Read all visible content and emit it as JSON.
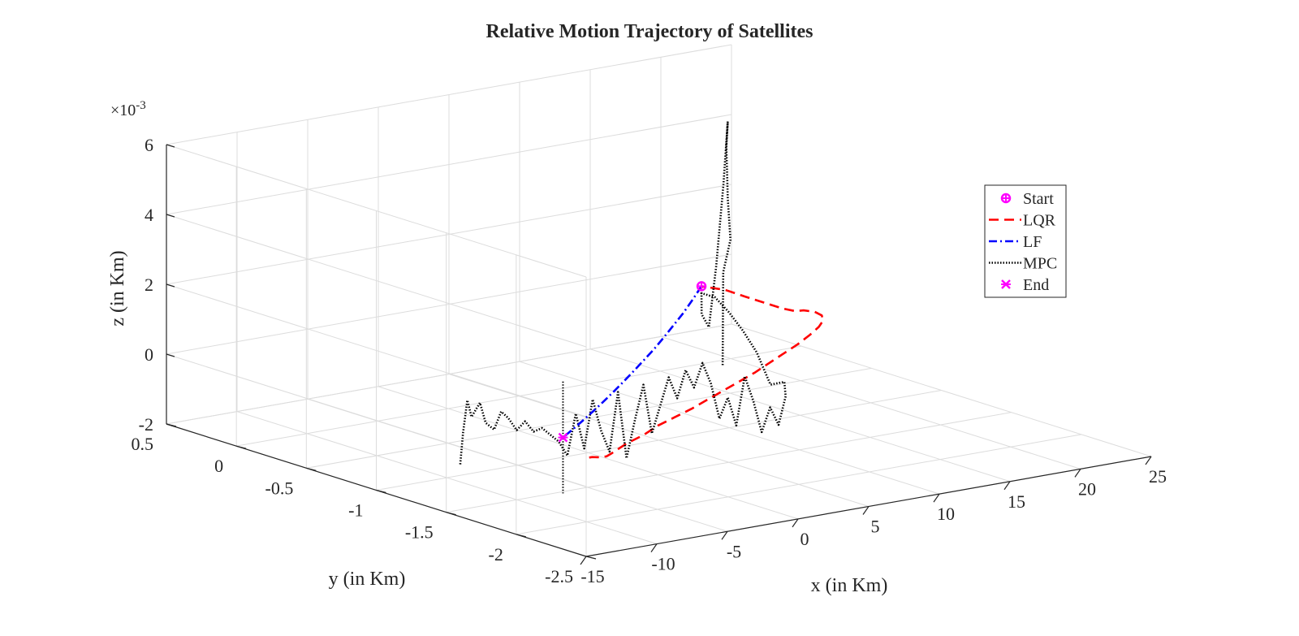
{
  "chart_data": {
    "type": "line",
    "projection": "3d",
    "title": "Relative Motion Trajectory of Satellites",
    "xlabel": "x (in Km)",
    "ylabel": "y (in Km)",
    "zlabel": "z (in Km)",
    "z_multiplier_label": "×10",
    "z_multiplier_exponent": "-3",
    "xlim": [
      -15,
      25
    ],
    "ylim": [
      -2.5,
      0.5
    ],
    "zlim": [
      -2,
      6
    ],
    "xticks": [
      "-15",
      "-10",
      "-5",
      "0",
      "5",
      "10",
      "15",
      "20",
      "25"
    ],
    "yticks": [
      "0.5",
      "0",
      "-0.5",
      "-1",
      "-1.5",
      "-2",
      "-2.5"
    ],
    "zticks": [
      "-2",
      "0",
      "2",
      "4",
      "6"
    ],
    "grid": true,
    "legend_position": "right",
    "series": [
      {
        "name": "Start",
        "marker": "circle-plus",
        "color": "#ff00ff",
        "points": [
          [
            10.0,
            -0.8,
            1.8
          ]
        ]
      },
      {
        "name": "LQR",
        "style": "dashed",
        "color": "#ff0000",
        "points": [
          [
            -13.2,
            -2.34,
            0.5
          ],
          [
            -12.0,
            -2.24,
            0.3
          ],
          [
            -11.0,
            -2.18,
            0.15
          ],
          [
            -10.0,
            -2.14,
            0.05
          ],
          [
            -9.0,
            -2.08,
            0.0
          ],
          [
            -7.0,
            -1.98,
            0.0
          ],
          [
            -5.0,
            -1.9,
            0.0
          ],
          [
            -3.0,
            -1.8,
            0.0
          ],
          [
            -1.0,
            -1.72,
            0.0
          ],
          [
            1.0,
            -1.64,
            0.0
          ],
          [
            3.0,
            -1.55,
            0.0
          ],
          [
            5.0,
            -1.46,
            0.0
          ],
          [
            7.0,
            -1.37,
            0.0
          ],
          [
            9.0,
            -1.28,
            0.0
          ],
          [
            11.0,
            -1.18,
            0.0
          ],
          [
            13.0,
            -1.08,
            0.0
          ],
          [
            15.0,
            -0.98,
            0.0
          ],
          [
            17.0,
            -0.87,
            0.0
          ],
          [
            18.5,
            -0.78,
            0.0
          ],
          [
            19.6,
            -0.7,
            0.0
          ],
          [
            20.3,
            -0.62,
            0.0
          ],
          [
            20.5,
            -0.55,
            0.0
          ],
          [
            20.2,
            -0.5,
            0.0
          ],
          [
            19.2,
            -0.54,
            0.1
          ],
          [
            17.5,
            -0.62,
            0.4
          ],
          [
            15.5,
            -0.7,
            0.8
          ],
          [
            13.5,
            -0.76,
            1.2
          ],
          [
            11.8,
            -0.79,
            1.55
          ],
          [
            10.0,
            -0.8,
            1.8
          ]
        ]
      },
      {
        "name": "LF",
        "style": "dash-dot",
        "color": "#0000ff",
        "points": [
          [
            10.0,
            -0.8,
            1.8
          ],
          [
            9.0,
            -0.84,
            1.55
          ],
          [
            7.5,
            -0.92,
            1.35
          ],
          [
            6.0,
            -1.0,
            1.2
          ],
          [
            4.5,
            -1.08,
            1.05
          ],
          [
            3.0,
            -1.16,
            0.92
          ],
          [
            1.5,
            -1.24,
            0.82
          ],
          [
            0.0,
            -1.32,
            0.72
          ],
          [
            -1.5,
            -1.4,
            0.63
          ],
          [
            -3.0,
            -1.48,
            0.55
          ],
          [
            -4.5,
            -1.56,
            0.48
          ],
          [
            -6.0,
            -1.64,
            0.42
          ],
          [
            -7.5,
            -1.72,
            0.37
          ],
          [
            -9.0,
            -1.8,
            0.33
          ],
          [
            -10.5,
            -1.88,
            0.3
          ]
        ]
      },
      {
        "name": "MPC",
        "style": "dotted",
        "color": "#000000",
        "points": [
          [
            -15.0,
            -1.6,
            -0.5
          ],
          [
            -14.8,
            -1.6,
            0.4
          ],
          [
            -14.5,
            -1.6,
            1.3
          ],
          [
            -14.2,
            -1.6,
            0.8
          ],
          [
            -13.8,
            -1.62,
            1.2
          ],
          [
            -13.4,
            -1.62,
            0.6
          ],
          [
            -13.0,
            -1.64,
            0.4
          ],
          [
            -12.6,
            -1.65,
            0.9
          ],
          [
            -12.2,
            -1.66,
            0.7
          ],
          [
            -11.8,
            -1.68,
            0.35
          ],
          [
            -11.4,
            -1.7,
            0.6
          ],
          [
            -11.0,
            -1.72,
            0.3
          ],
          [
            -10.6,
            -1.74,
            0.4
          ],
          [
            -10.2,
            -1.76,
            0.2
          ],
          [
            -9.8,
            -1.78,
            0.0
          ],
          [
            -9.4,
            -1.8,
            -0.4
          ],
          [
            -9.0,
            -1.82,
            0.8
          ],
          [
            -8.6,
            -1.84,
            -0.2
          ],
          [
            -8.2,
            -1.86,
            1.2
          ],
          [
            -7.8,
            -1.88,
            0.3
          ],
          [
            -7.4,
            -1.9,
            -0.3
          ],
          [
            -7.0,
            -1.92,
            1.4
          ],
          [
            -6.6,
            -1.94,
            -0.5
          ],
          [
            -6.2,
            -1.96,
            0.6
          ],
          [
            -5.8,
            -1.98,
            1.6
          ],
          [
            -5.4,
            -2.0,
            0.2
          ],
          [
            -5.0,
            -2.02,
            1.0
          ],
          [
            -4.6,
            -2.04,
            1.8
          ],
          [
            -4.2,
            -2.06,
            1.2
          ],
          [
            -3.8,
            -2.08,
            2.0
          ],
          [
            -3.4,
            -2.1,
            1.5
          ],
          [
            -3.0,
            -2.12,
            2.2
          ],
          [
            -2.6,
            -2.14,
            1.6
          ],
          [
            -2.2,
            -2.16,
            0.6
          ],
          [
            -1.8,
            -2.18,
            1.2
          ],
          [
            -1.4,
            -2.2,
            0.4
          ],
          [
            -1.0,
            -2.22,
            1.8
          ],
          [
            -0.6,
            -2.24,
            1.1
          ],
          [
            -0.2,
            -2.26,
            0.2
          ],
          [
            0.2,
            -2.28,
            0.9
          ],
          [
            0.6,
            -2.3,
            0.4
          ],
          [
            1.0,
            -2.31,
            1.2
          ],
          [
            2.0,
            -2.2,
            1.4
          ],
          [
            3.0,
            -2.0,
            1.0
          ],
          [
            4.0,
            -1.8,
            1.6
          ],
          [
            5.0,
            -1.6,
            1.9
          ],
          [
            6.0,
            -1.4,
            2.1
          ],
          [
            7.0,
            -1.2,
            2.2
          ],
          [
            8.0,
            -1.0,
            2.0
          ],
          [
            9.0,
            -0.9,
            2.0
          ],
          [
            10.0,
            -0.8,
            1.8
          ],
          [
            11.0,
            -0.7,
            0.8
          ],
          [
            12.5,
            -0.6,
            0.2
          ],
          [
            13.5,
            -0.5,
            0.0
          ],
          [
            15.0,
            -0.4,
            1.5
          ],
          [
            16.5,
            -0.3,
            3.6
          ],
          [
            17.8,
            -0.2,
            5.2
          ],
          [
            18.2,
            -0.15,
            4.4
          ],
          [
            17.8,
            -0.2,
            3.0
          ],
          [
            17.0,
            -0.3,
            2.0
          ],
          [
            15.5,
            -0.4,
            1.3
          ],
          [
            14.0,
            -0.55,
            0.6
          ],
          [
            12.5,
            -0.7,
            -0.1
          ],
          [
            11.5,
            -0.8,
            -0.6
          ]
        ]
      },
      {
        "name": "End",
        "marker": "star",
        "color": "#ff00ff",
        "points": [
          [
            -10.5,
            -1.88,
            0.3
          ]
        ]
      }
    ]
  }
}
